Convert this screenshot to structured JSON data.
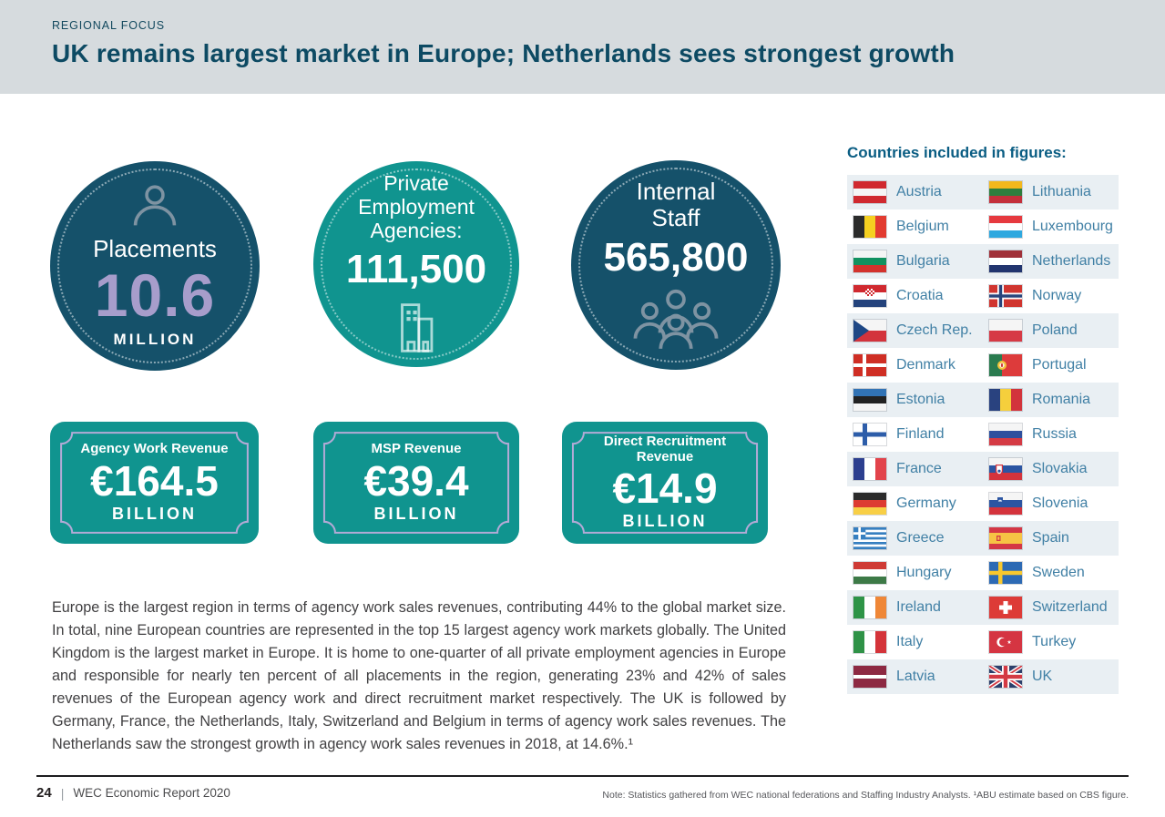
{
  "header": {
    "eyebrow": "REGIONAL FOCUS",
    "title": "UK remains largest market in Europe; Netherlands sees strongest growth"
  },
  "stat_circles": [
    {
      "label": "Placements",
      "value": "10.6",
      "unit": "MILLION",
      "icon": "person-icon"
    },
    {
      "label": "Private Employment Agencies:",
      "value": "111,500",
      "icon": "building-icon"
    },
    {
      "label": "Internal Staff",
      "value": "565,800",
      "icon": "people-icon"
    }
  ],
  "revenue_badges": [
    {
      "title": "Agency Work Revenue",
      "value": "€164.5",
      "unit": "BILLION"
    },
    {
      "title": "MSP Revenue",
      "value": "€39.4",
      "unit": "BILLION"
    },
    {
      "title": "Direct Recruitment Revenue",
      "value": "€14.9",
      "unit": "BILLION"
    }
  ],
  "body_paragraph": "Europe is the largest region in terms of agency work sales revenues, contributing 44% to the global market size. In total, nine European countries are represented in the top 15 largest agency work markets globally. The United Kingdom is the largest market in Europe. It is home to one-quarter of all private employment agencies in Europe and responsible for nearly ten percent of all placements in the region, generating 23% and 42% of sales revenues of the European agency work and direct recruitment market respectively. The UK is followed by Germany, France, the Netherlands, Italy, Switzerland and Belgium in terms of agency work sales revenues. The Netherlands saw the strongest growth in agency work sales revenues in 2018, at 14.6%.¹",
  "countries_panel": {
    "heading": "Countries included in figures:",
    "rows": [
      {
        "left": {
          "name": "Austria",
          "flag": "austria"
        },
        "right": {
          "name": "Lithuania",
          "flag": "lithuania"
        }
      },
      {
        "left": {
          "name": "Belgium",
          "flag": "belgium"
        },
        "right": {
          "name": "Luxembourg",
          "flag": "luxembourg"
        }
      },
      {
        "left": {
          "name": "Bulgaria",
          "flag": "bulgaria"
        },
        "right": {
          "name": "Netherlands",
          "flag": "netherlands"
        }
      },
      {
        "left": {
          "name": "Croatia",
          "flag": "croatia"
        },
        "right": {
          "name": "Norway",
          "flag": "norway"
        }
      },
      {
        "left": {
          "name": "Czech Rep.",
          "flag": "czech"
        },
        "right": {
          "name": "Poland",
          "flag": "poland"
        }
      },
      {
        "left": {
          "name": "Denmark",
          "flag": "denmark"
        },
        "right": {
          "name": "Portugal",
          "flag": "portugal"
        }
      },
      {
        "left": {
          "name": "Estonia",
          "flag": "estonia"
        },
        "right": {
          "name": "Romania",
          "flag": "romania"
        }
      },
      {
        "left": {
          "name": "Finland",
          "flag": "finland"
        },
        "right": {
          "name": "Russia",
          "flag": "russia"
        }
      },
      {
        "left": {
          "name": "France",
          "flag": "france"
        },
        "right": {
          "name": "Slovakia",
          "flag": "slovakia"
        }
      },
      {
        "left": {
          "name": "Germany",
          "flag": "germany"
        },
        "right": {
          "name": "Slovenia",
          "flag": "slovenia"
        }
      },
      {
        "left": {
          "name": "Greece",
          "flag": "greece"
        },
        "right": {
          "name": "Spain",
          "flag": "spain"
        }
      },
      {
        "left": {
          "name": "Hungary",
          "flag": "hungary"
        },
        "right": {
          "name": "Sweden",
          "flag": "sweden"
        }
      },
      {
        "left": {
          "name": "Ireland",
          "flag": "ireland"
        },
        "right": {
          "name": "Switzerland",
          "flag": "switzerland"
        }
      },
      {
        "left": {
          "name": "Italy",
          "flag": "italy"
        },
        "right": {
          "name": "Turkey",
          "flag": "turkey"
        }
      },
      {
        "left": {
          "name": "Latvia",
          "flag": "latvia"
        },
        "right": {
          "name": "UK",
          "flag": "uk"
        }
      }
    ]
  },
  "footer": {
    "page_number": "24",
    "separator": "|",
    "report_title": "WEC Economic Report 2020",
    "note": "Note: Statistics gathered from WEC national federations and Staffing Industry Analysts. ¹ABU estimate based on CBS figure."
  },
  "colors": {
    "header_bg": "#d6dbde",
    "title_text": "#0d4a63",
    "dark_teal_circle": "#15516a",
    "teal": "#10948f",
    "accent_purple": "#a79dcb",
    "plaque_border": "#b3aad6",
    "row_alt_bg": "#e9eff3",
    "country_text": "#4180a5",
    "countries_heading": "#0a5d83",
    "body_text": "#414042"
  }
}
